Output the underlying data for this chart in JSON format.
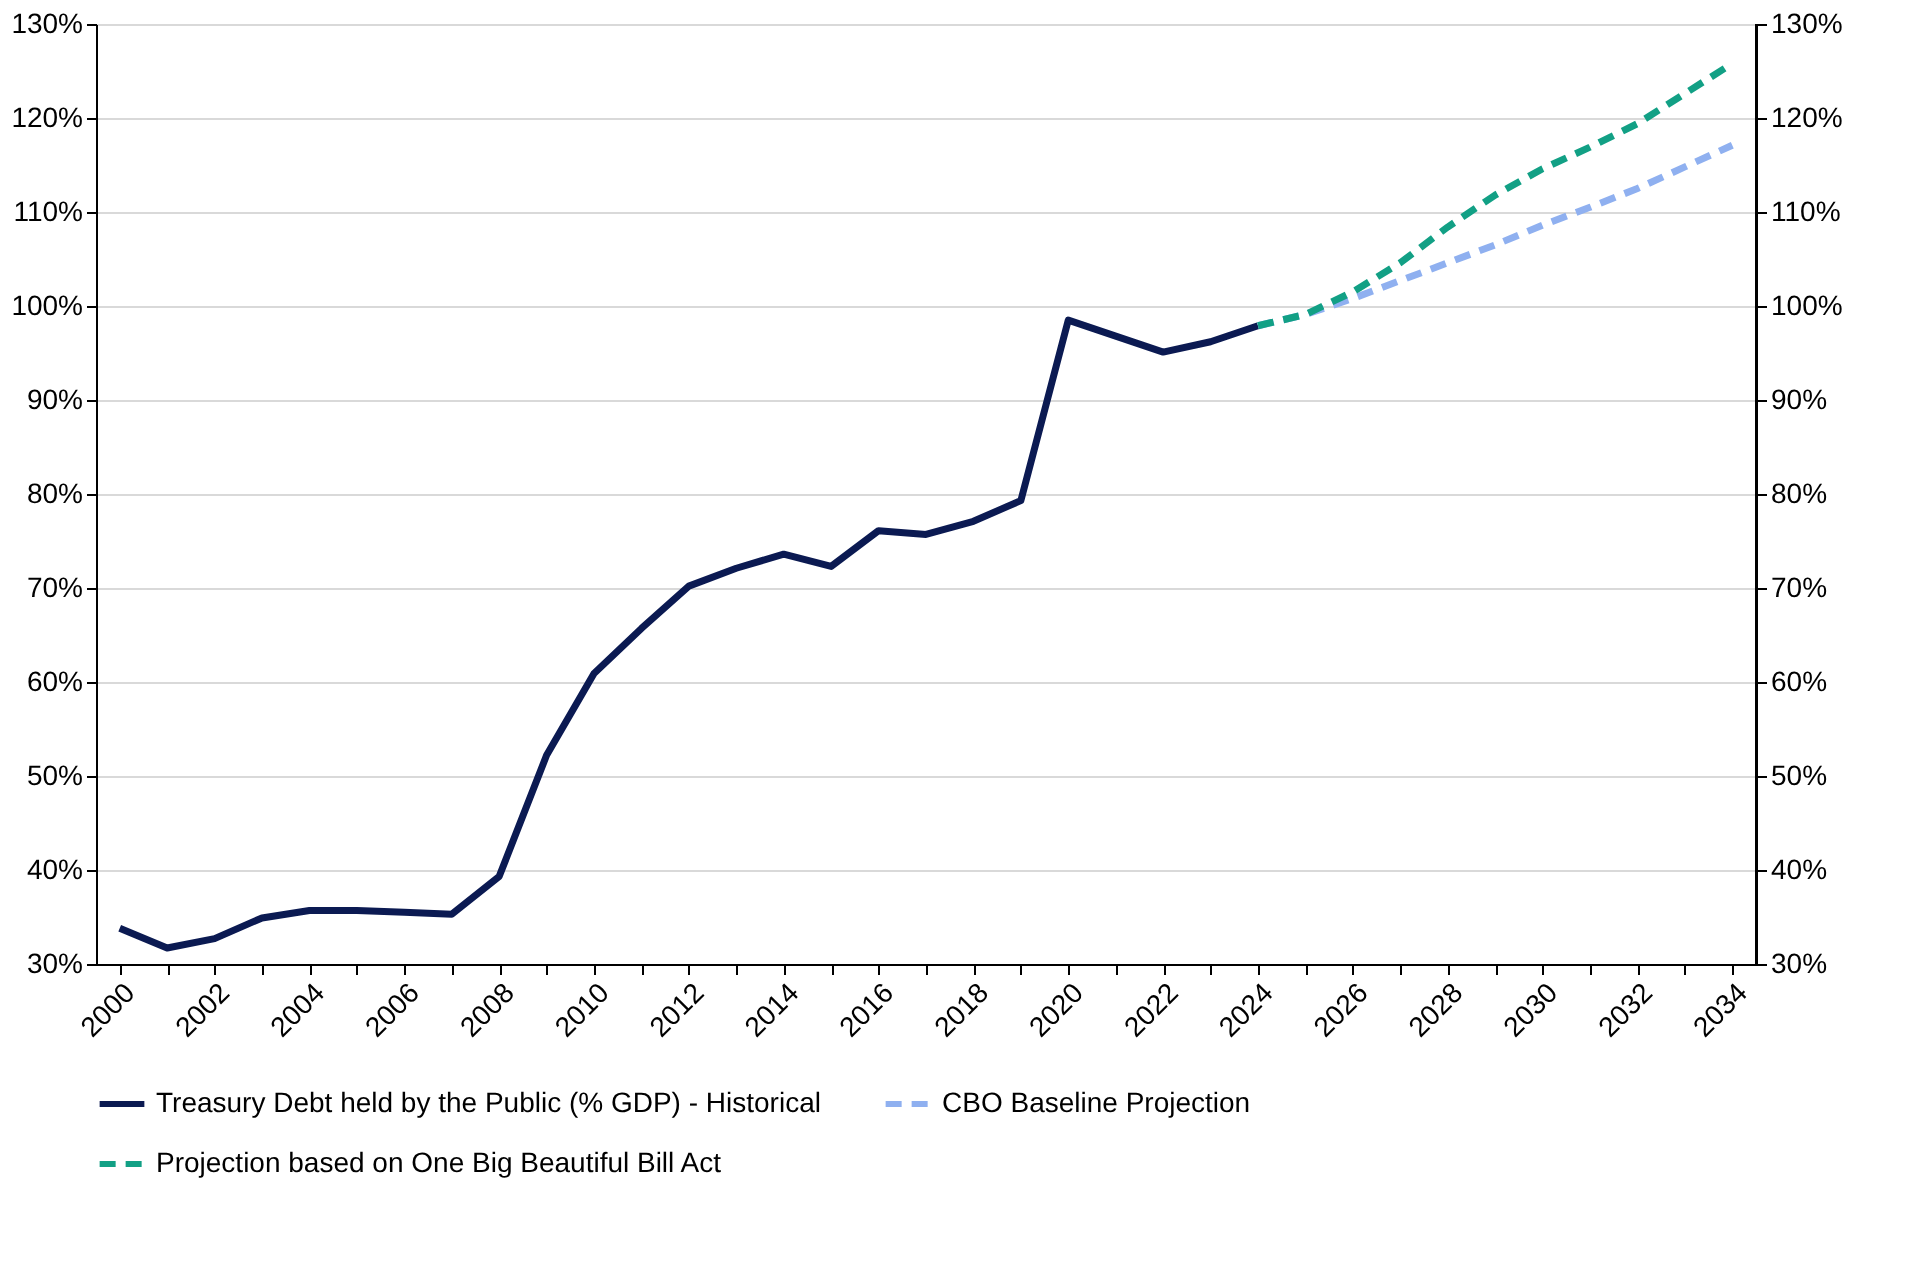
{
  "chart_data": {
    "type": "line",
    "categories": [
      "2000",
      null,
      "2002",
      null,
      "2004",
      null,
      "2006",
      null,
      "2008",
      null,
      "2010",
      null,
      "2012",
      null,
      "2014",
      null,
      "2016",
      null,
      "2018",
      null,
      "2020",
      null,
      "2022",
      null,
      "2024",
      null,
      "2026",
      null,
      "2028",
      null,
      "2030",
      null,
      "2032",
      null,
      "2034"
    ],
    "series": [
      {
        "name": "Treasury Debt held by the Public (% GDP) - Historical",
        "color": "#0b1a52",
        "line_style": "solid",
        "values": [
          33.8,
          31.7,
          32.7,
          34.9,
          35.7,
          35.7,
          35.5,
          35.3,
          39.3,
          52.2,
          60.9,
          65.7,
          70.2,
          72.1,
          73.6,
          72.3,
          76.1,
          75.7,
          77.1,
          79.3,
          98.5,
          96.8,
          95.1,
          96.2,
          97.9,
          null,
          null,
          null,
          null,
          null,
          null,
          null,
          null,
          null,
          null
        ]
      },
      {
        "name": "CBO Baseline Projection",
        "color": "#8fb0f0",
        "line_style": "dashed",
        "values": [
          null,
          null,
          null,
          null,
          null,
          null,
          null,
          null,
          null,
          null,
          null,
          null,
          null,
          null,
          null,
          null,
          null,
          null,
          null,
          null,
          null,
          null,
          null,
          null,
          97.9,
          99.1,
          100.8,
          102.7,
          104.6,
          106.5,
          108.6,
          110.5,
          112.5,
          114.8,
          117.1
        ]
      },
      {
        "name": "Projection based on One Big Beautiful Bill Act",
        "color": "#12a085",
        "line_style": "dashed",
        "values": [
          null,
          null,
          null,
          null,
          null,
          null,
          null,
          null,
          null,
          null,
          null,
          null,
          null,
          null,
          null,
          null,
          null,
          null,
          null,
          null,
          null,
          null,
          null,
          null,
          97.9,
          99.1,
          101.5,
          104.6,
          108.4,
          111.8,
          114.6,
          116.9,
          119.4,
          122.6,
          125.8
        ]
      }
    ],
    "ylim": [
      30,
      130
    ],
    "yticks": [
      {
        "value": 30,
        "label": "30%"
      },
      {
        "value": 40,
        "label": "40%"
      },
      {
        "value": 50,
        "label": "50%"
      },
      {
        "value": 60,
        "label": "60%"
      },
      {
        "value": 70,
        "label": "70%"
      },
      {
        "value": 80,
        "label": "80%"
      },
      {
        "value": 90,
        "label": "90%"
      },
      {
        "value": 100,
        "label": "100%"
      },
      {
        "value": 110,
        "label": "110%"
      },
      {
        "value": 120,
        "label": "120%"
      },
      {
        "value": 130,
        "label": "130%"
      }
    ],
    "y2lim": [
      30,
      130
    ],
    "y2ticks": [
      {
        "value": 30,
        "label": "30%"
      },
      {
        "value": 40,
        "label": "40%"
      },
      {
        "value": 50,
        "label": "50%"
      },
      {
        "value": 60,
        "label": "60%"
      },
      {
        "value": 70,
        "label": "70%"
      },
      {
        "value": 80,
        "label": "80%"
      },
      {
        "value": 90,
        "label": "90%"
      },
      {
        "value": 100,
        "label": "100%"
      },
      {
        "value": 110,
        "label": "110%"
      },
      {
        "value": 120,
        "label": "120%"
      },
      {
        "value": 130,
        "label": "130%"
      }
    ],
    "grid": "y",
    "legend": "bottom"
  }
}
